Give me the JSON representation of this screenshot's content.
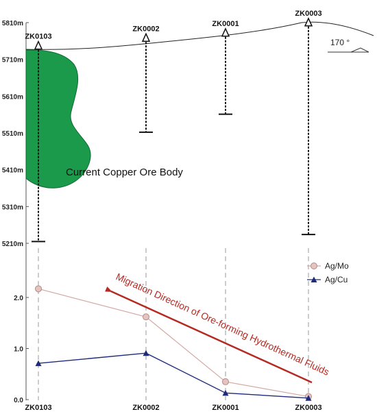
{
  "section": {
    "depth_axis": {
      "ticks": [
        "5810m",
        "5710m",
        "5610m",
        "5510m",
        "5410m",
        "5310m",
        "5210m"
      ],
      "top_value": 5810,
      "bottom_value": 5210
    },
    "drillholes": [
      {
        "id": "ZK0103",
        "collar_m": 5740,
        "bottom_m": 5215,
        "x_index": 0
      },
      {
        "id": "ZK0002",
        "collar_m": 5761,
        "bottom_m": 5512,
        "x_index": 1
      },
      {
        "id": "ZK0001",
        "collar_m": 5775,
        "bottom_m": 5561,
        "x_index": 2
      },
      {
        "id": "ZK0003",
        "collar_m": 5803,
        "bottom_m": 5234,
        "x_index": 3
      }
    ],
    "ore_body_label": "Current Copper Ore Body",
    "orientation_label": "170 °",
    "ore_color": "#1a9a4a"
  },
  "chart_data": {
    "type": "line",
    "categories": [
      "ZK0103",
      "ZK0002",
      "ZK0001",
      "ZK0003"
    ],
    "series": [
      {
        "name": "Ag/Mo",
        "values": [
          2.17,
          1.62,
          0.35,
          0.06
        ],
        "color": "#d4a8a4",
        "marker": "circle"
      },
      {
        "name": "Ag/Cu",
        "values": [
          0.71,
          0.91,
          0.13,
          0.03
        ],
        "color": "#1f2a7a",
        "marker": "triangle"
      }
    ],
    "yticks": [
      "0.0",
      "1.0",
      "2.0"
    ],
    "ylim": [
      0,
      2.5
    ],
    "legend_position": "right",
    "annotation": {
      "text": "Migration Direction of Ore-forming Hydrothermal Fluids",
      "color": "#b52a22"
    }
  }
}
